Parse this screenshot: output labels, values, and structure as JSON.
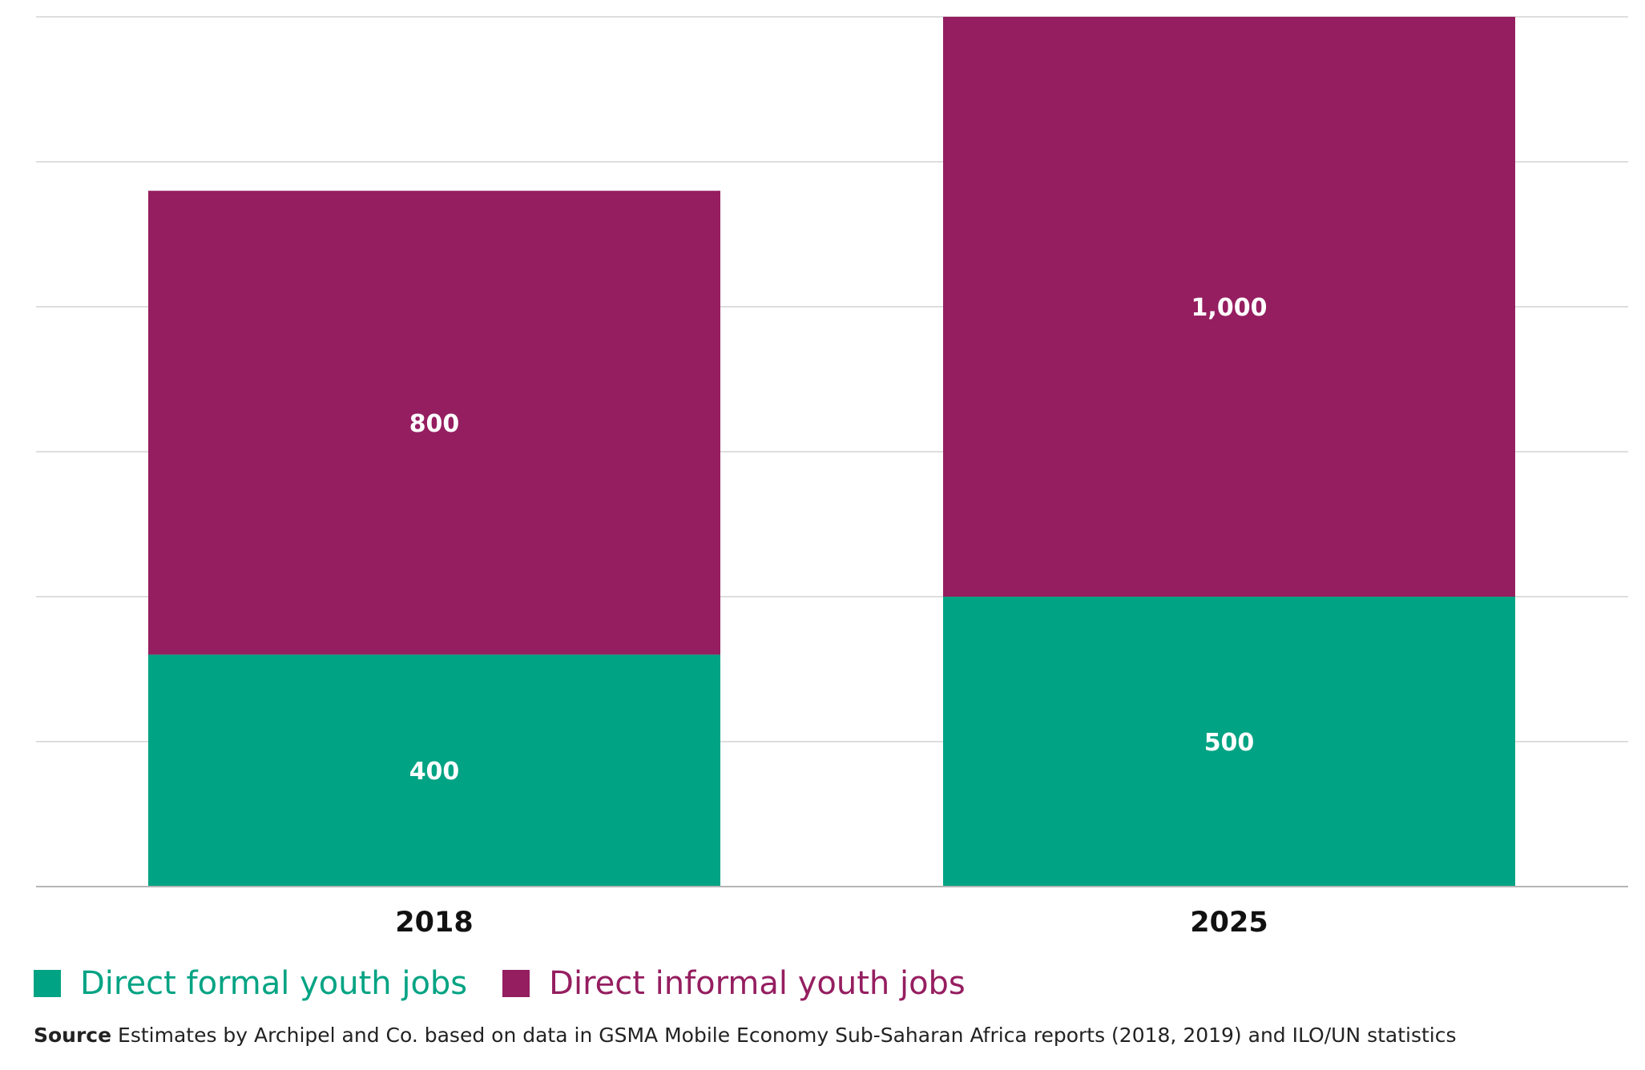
{
  "colors": {
    "formal": "#00a383",
    "informal": "#951e60",
    "grid": "#d4d4d4",
    "axis": "#b5b5b5"
  },
  "legend": {
    "formal_label": "Direct formal youth jobs",
    "informal_label": "Direct informal youth jobs"
  },
  "source": {
    "prefix": "Source",
    "text": " Estimates by Archipel and Co. based on data in GSMA Mobile Economy Sub-Saharan Africa reports (2018, 2019) and ILO/UN statistics"
  },
  "chart_data": {
    "type": "bar",
    "stacked": true,
    "categories": [
      "2018",
      "2025"
    ],
    "series": [
      {
        "name": "Direct formal youth jobs",
        "values": [
          400,
          500
        ],
        "labels": [
          "400",
          "500"
        ]
      },
      {
        "name": "Direct informal youth jobs",
        "values": [
          800,
          1000
        ],
        "labels": [
          "800",
          "1,000"
        ]
      }
    ],
    "ylim": [
      0,
      1500
    ],
    "grid": true,
    "legend_position": "bottom-left"
  }
}
